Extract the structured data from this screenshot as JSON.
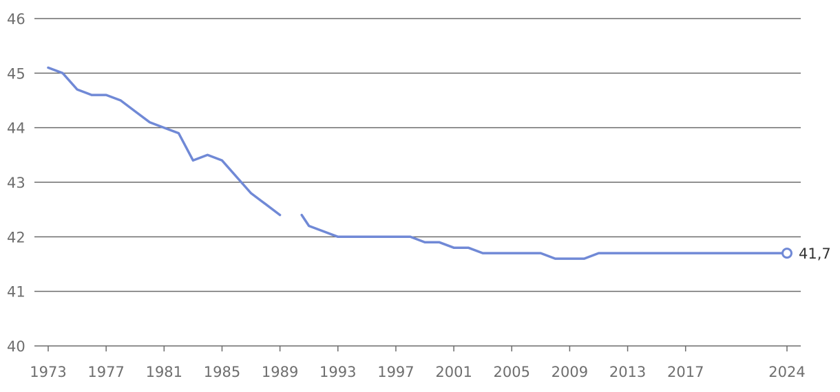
{
  "chart_data": {
    "type": "line",
    "title": "",
    "xlabel": "",
    "ylabel": "",
    "ylim": [
      40,
      46
    ],
    "xlim": [
      1973,
      2024
    ],
    "grid": true,
    "y_ticks": [
      "40",
      "41",
      "42",
      "43",
      "44",
      "45",
      "46"
    ],
    "x_ticks": [
      "1973",
      "1977",
      "1981",
      "1985",
      "1989",
      "1993",
      "1997",
      "2001",
      "2005",
      "2009",
      "2013",
      "2017",
      "2024"
    ],
    "series": [
      {
        "color": "#7089d6",
        "points": [
          [
            1973,
            45.1
          ],
          [
            1974,
            45.0
          ],
          [
            1975,
            44.7
          ],
          [
            1976,
            44.6
          ],
          [
            1977,
            44.6
          ],
          [
            1978,
            44.5
          ],
          [
            1979,
            44.3
          ],
          [
            1980,
            44.1
          ],
          [
            1981,
            44.0
          ],
          [
            1982,
            43.9
          ],
          [
            1983,
            43.4
          ],
          [
            1984,
            43.5
          ],
          [
            1985,
            43.4
          ],
          [
            1986,
            43.1
          ],
          [
            1987,
            42.8
          ],
          [
            1988,
            42.6
          ],
          [
            1989,
            42.4
          ],
          [
            1990,
            null
          ],
          [
            1990.5,
            42.4
          ],
          [
            1991,
            42.2
          ],
          [
            1992,
            42.1
          ],
          [
            1993,
            42.0
          ],
          [
            1994,
            42.0
          ],
          [
            1995,
            42.0
          ],
          [
            1996,
            42.0
          ],
          [
            1997,
            42.0
          ],
          [
            1998,
            42.0
          ],
          [
            1999,
            41.9
          ],
          [
            2000,
            41.9
          ],
          [
            2001,
            41.8
          ],
          [
            2002,
            41.8
          ],
          [
            2003,
            41.7
          ],
          [
            2004,
            41.7
          ],
          [
            2005,
            41.7
          ],
          [
            2006,
            41.7
          ],
          [
            2007,
            41.7
          ],
          [
            2008,
            41.6
          ],
          [
            2009,
            41.6
          ],
          [
            2010,
            41.6
          ],
          [
            2011,
            41.7
          ],
          [
            2024,
            41.7
          ]
        ]
      }
    ],
    "end_label": "41,7"
  }
}
